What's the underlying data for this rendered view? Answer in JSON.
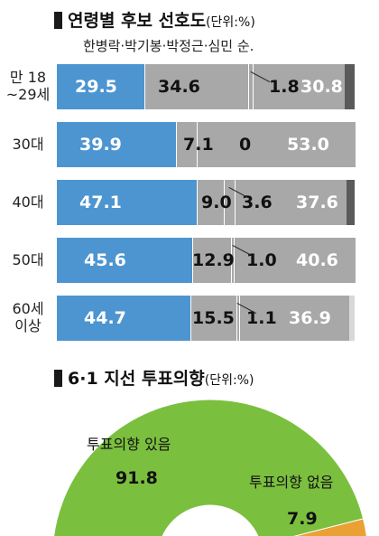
{
  "chart_data": [
    {
      "type": "bar",
      "orientation": "horizontal",
      "stacked": true,
      "title": "연령별 후보 선호도",
      "unit_note": "(단위:%)",
      "subtitle": "한병락·박기봉·박정근·심민 순.",
      "categories": [
        [
          "만 18",
          "~29세"
        ],
        [
          "30대"
        ],
        [
          "40대"
        ],
        [
          "50대"
        ],
        [
          "60세",
          "이상"
        ]
      ],
      "series": [
        {
          "name": "한병락",
          "values": [
            29.5,
            39.9,
            47.1,
            45.6,
            44.7
          ]
        },
        {
          "name": "박기봉",
          "values": [
            34.6,
            7.1,
            9.0,
            12.9,
            15.5
          ]
        },
        {
          "name": "박정근",
          "values": [
            1.8,
            0,
            3.6,
            1.0,
            1.1
          ]
        },
        {
          "name": "심민",
          "values": [
            30.8,
            53.0,
            37.6,
            40.6,
            36.9
          ]
        }
      ],
      "value_labels": [
        [
          "29.5",
          "34.6",
          "1.8",
          "30.8"
        ],
        [
          "39.9",
          "7.1",
          "0",
          "53.0"
        ],
        [
          "47.1",
          "9.0",
          "3.6",
          "37.6"
        ],
        [
          "45.6",
          "12.9",
          "1.0",
          "40.6"
        ],
        [
          "44.7",
          "15.5",
          "1.1",
          "36.9"
        ]
      ],
      "colors": {
        "first": "#4c95d0",
        "others": "#a8a8a8",
        "remainder": "#5a5a5a",
        "remainder_light": "#d8d8d8"
      }
    },
    {
      "type": "pie",
      "style": "semicircle-gauge",
      "title": "6·1 지선 투표의향",
      "unit_note": "(단위:%)",
      "slices": [
        {
          "label": "투표의향 있음",
          "value": 91.8,
          "value_label": "91.8",
          "color": "#7bbf3f"
        },
        {
          "label": "투표의향 없음",
          "value": 7.9,
          "value_label": "7.9",
          "color": "#eaa133"
        }
      ]
    }
  ]
}
